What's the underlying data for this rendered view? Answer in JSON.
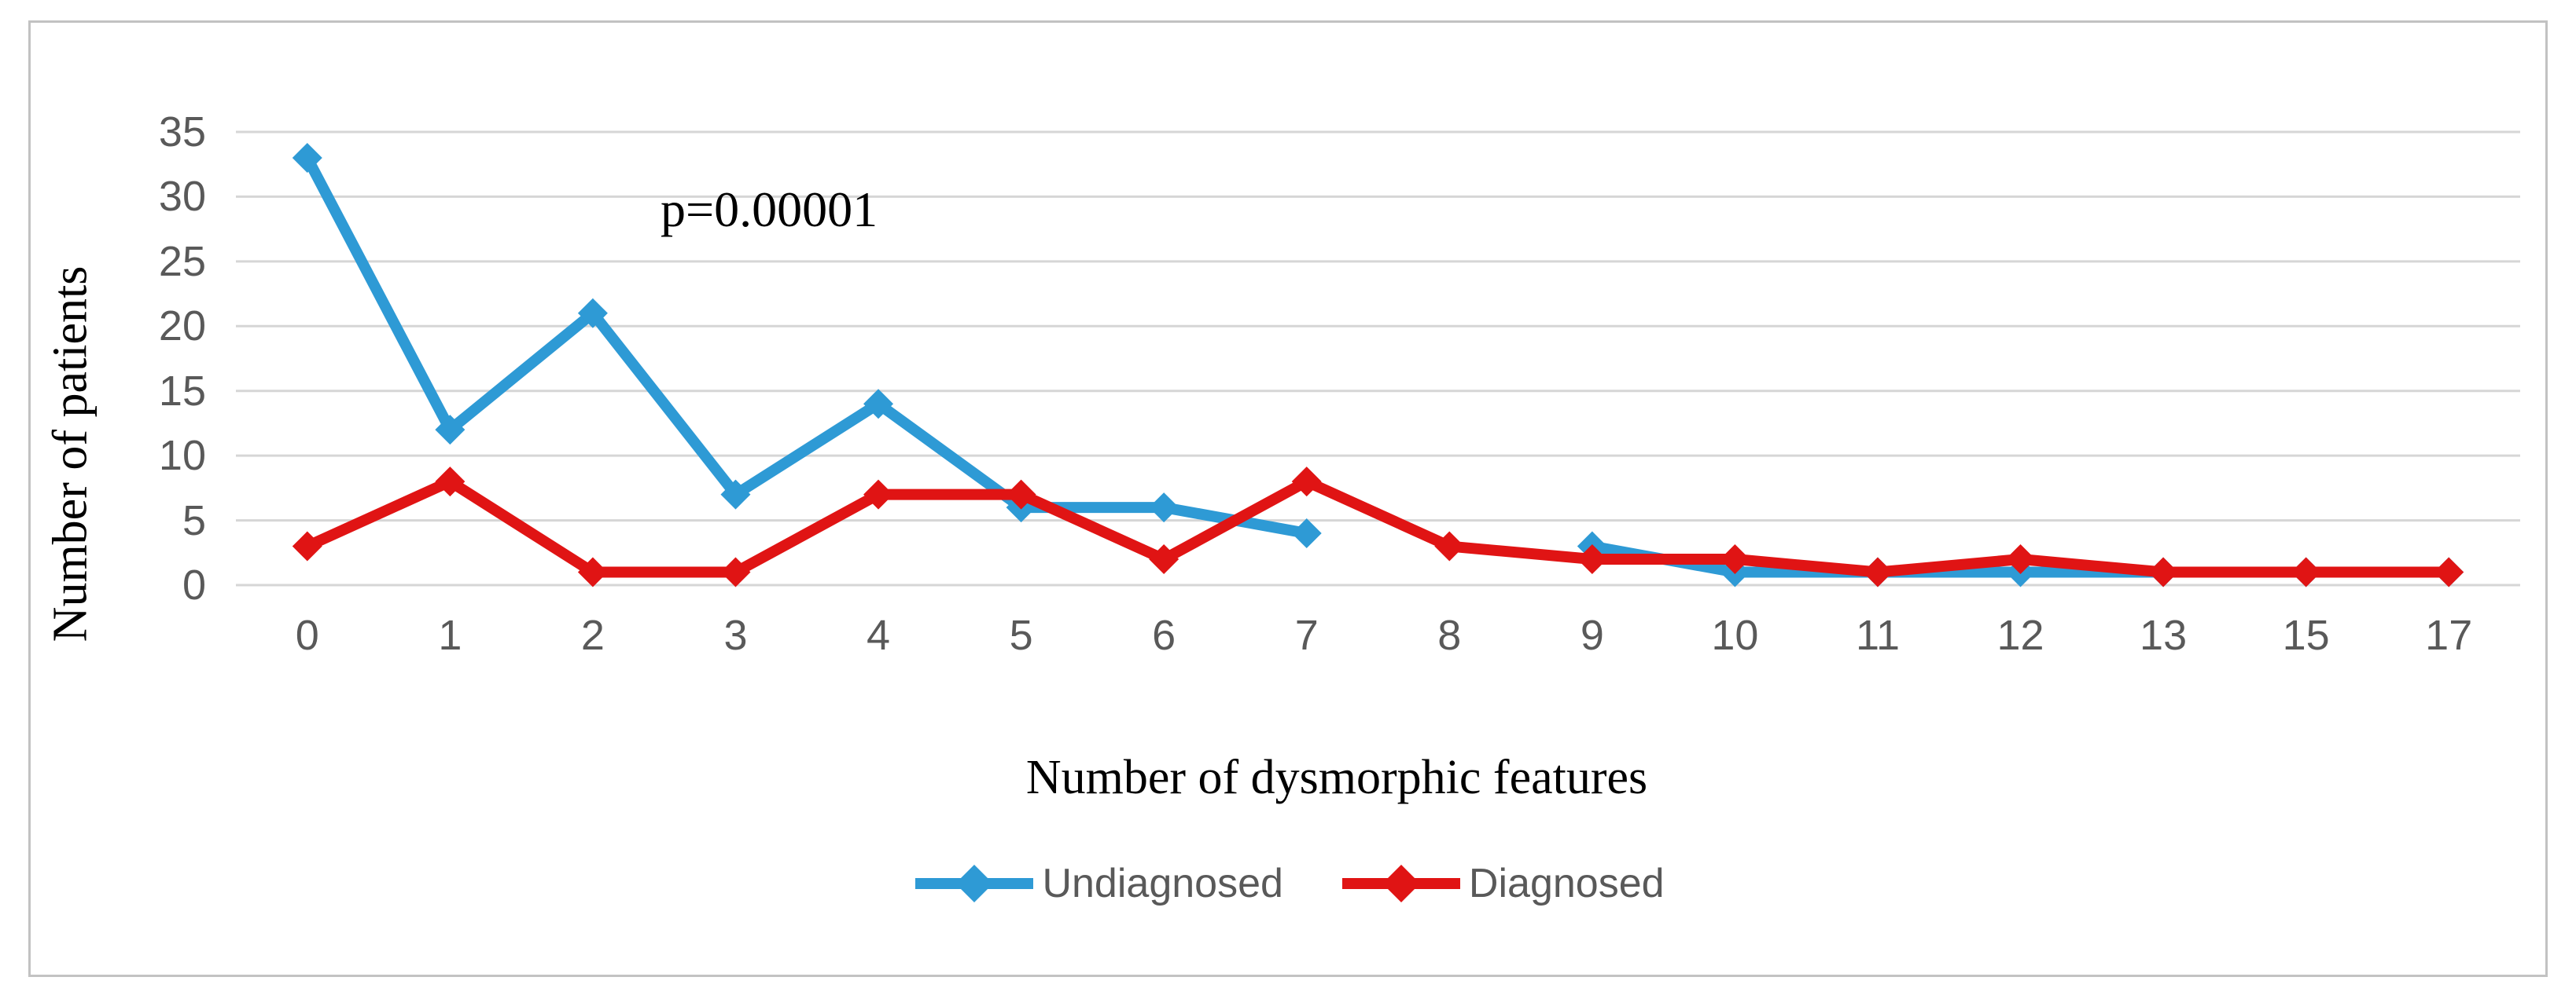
{
  "figure": {
    "background": "#ffffff",
    "border_color": "#c2c2c2"
  },
  "chart_data": {
    "type": "line",
    "title": "",
    "xlabel": "Number of dysmorphic features",
    "ylabel": "Number of patients",
    "annotation": "p=0.00001",
    "categories": [
      "0",
      "1",
      "2",
      "3",
      "4",
      "5",
      "6",
      "7",
      "8",
      "9",
      "10",
      "11",
      "12",
      "13",
      "15",
      "17"
    ],
    "yticks": [
      0,
      5,
      10,
      15,
      20,
      25,
      30,
      35
    ],
    "ylim": [
      0,
      35
    ],
    "grid": true,
    "gridline_color": "#d6d6d6",
    "tick_color": "#595959",
    "legend_position": "bottom-center",
    "series": [
      {
        "name": "Undiagnosed",
        "color": "#2e9ad5",
        "values": [
          33,
          12,
          21,
          7,
          14,
          6,
          6,
          4,
          null,
          3,
          1,
          1,
          1,
          1,
          1,
          1
        ]
      },
      {
        "name": "Diagnosed",
        "color": "#e01414",
        "values": [
          3,
          8,
          1,
          1,
          7,
          7,
          2,
          8,
          3,
          2,
          2,
          1,
          2,
          1,
          1,
          1
        ]
      }
    ]
  }
}
